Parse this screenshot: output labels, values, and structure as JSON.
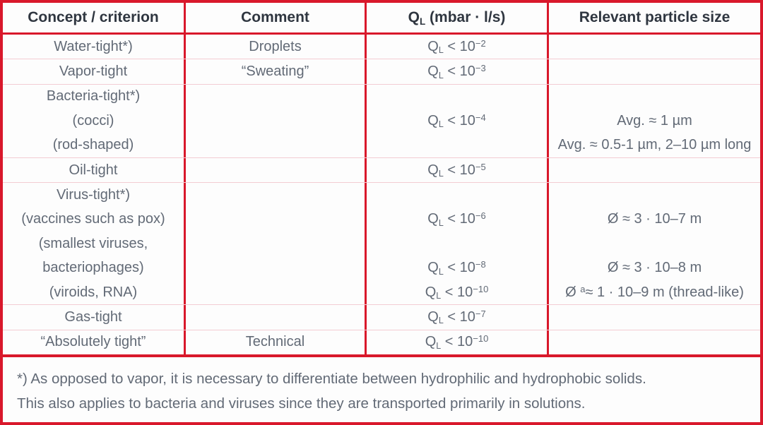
{
  "colors": {
    "red": "#d9182b",
    "pink": "#f3ccd3",
    "text": "#626a76",
    "heading": "#2f3640",
    "bg": "#fdfdfd"
  },
  "table": {
    "headers": {
      "concept": [
        "Concept / criterion"
      ],
      "comment": [
        "Comment"
      ],
      "leak_rate": [
        "Q",
        {
          "sub": "L"
        },
        " (mbar · l/s)"
      ],
      "particle_size": [
        "Relevant particle size"
      ]
    },
    "rows": [
      {
        "id": "water-tight",
        "concept": [
          [
            "Water-tight*)"
          ]
        ],
        "comment": [
          [
            "Droplets"
          ]
        ],
        "q": [
          [
            "Q",
            {
              "sub": "L"
            },
            " < 10",
            {
              "sup": "−2"
            }
          ]
        ],
        "size": [
          []
        ]
      },
      {
        "id": "vapor-tight",
        "concept": [
          [
            "Vapor-tight"
          ]
        ],
        "comment": [
          [
            "“Sweating”"
          ]
        ],
        "q": [
          [
            "Q",
            {
              "sub": "L"
            },
            " < 10",
            {
              "sup": "−3"
            }
          ]
        ],
        "size": [
          []
        ]
      },
      {
        "id": "bacteria-tight",
        "concept": [
          [
            "Bacteria-tight*)"
          ],
          [
            "(cocci)"
          ],
          [
            "(rod-shaped)"
          ]
        ],
        "comment": [
          [],
          [],
          []
        ],
        "q": [
          [],
          [
            "Q",
            {
              "sub": "L"
            },
            " < 10",
            {
              "sup": "−4"
            }
          ],
          []
        ],
        "size": [
          [],
          [
            "Avg. ≈ 1 µm"
          ],
          [
            "Avg. ≈ 0.5-1 µm, 2–10 µm long"
          ]
        ]
      },
      {
        "id": "oil-tight",
        "concept": [
          [
            "Oil-tight"
          ]
        ],
        "comment": [
          []
        ],
        "q": [
          [
            "Q",
            {
              "sub": "L"
            },
            " < 10",
            {
              "sup": "−5"
            }
          ]
        ],
        "size": [
          []
        ]
      },
      {
        "id": "virus-tight",
        "concept": [
          [
            "Virus-tight*)"
          ],
          [
            "(vaccines such as pox)"
          ],
          [
            "(smallest viruses,"
          ],
          [
            "bacteriophages)"
          ],
          [
            "(viroids, RNA)"
          ]
        ],
        "comment": [
          [],
          [],
          [],
          [],
          []
        ],
        "q": [
          [],
          [
            "Q",
            {
              "sub": "L"
            },
            " < 10",
            {
              "sup": "−6"
            }
          ],
          [],
          [
            "Q",
            {
              "sub": "L"
            },
            " < 10",
            {
              "sup": "−8"
            }
          ],
          [
            "Q",
            {
              "sub": "L"
            },
            " < 10",
            {
              "sup": "−10"
            }
          ]
        ],
        "size": [
          [],
          [
            "Ø ≈ 3 · 10–7 m"
          ],
          [],
          [
            "Ø ≈ 3 · 10–8 m"
          ],
          [
            "Ø ",
            {
              "sup": "a"
            },
            "≈ 1 · 10–9 m (thread-like)"
          ]
        ]
      },
      {
        "id": "gas-tight",
        "concept": [
          [
            "Gas-tight"
          ]
        ],
        "comment": [
          []
        ],
        "q": [
          [
            "Q",
            {
              "sub": "L"
            },
            " < 10",
            {
              "sup": "−7"
            }
          ]
        ],
        "size": [
          []
        ]
      },
      {
        "id": "absolutely-tight",
        "concept": [
          [
            "“Absolutely tight”"
          ]
        ],
        "comment": [
          [
            "Technical"
          ]
        ],
        "q": [
          [
            "Q",
            {
              "sub": "L"
            },
            " < 10",
            {
              "sup": "−10"
            }
          ]
        ],
        "size": [
          []
        ]
      }
    ]
  },
  "footnote": {
    "line1": "*) As opposed to vapor, it is necessary to differentiate between hydrophilic and hydrophobic solids.",
    "line2": "This also applies to bacteria and viruses since they are transported primarily in solutions."
  }
}
